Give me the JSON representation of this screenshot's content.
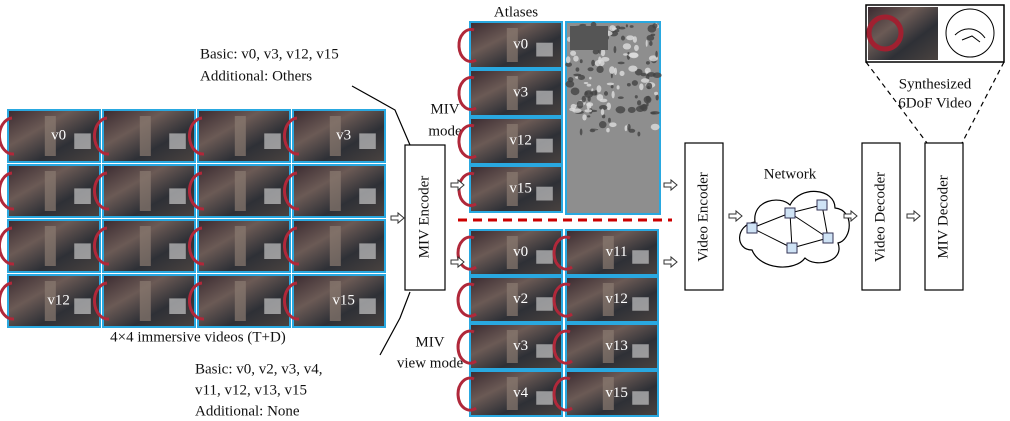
{
  "input": {
    "rows": [
      [
        "v0",
        null,
        null,
        "v3"
      ],
      [
        null,
        null,
        null,
        null
      ],
      [
        null,
        null,
        null,
        null
      ],
      [
        "v12",
        null,
        null,
        "v15"
      ]
    ],
    "caption": "4×4 immersive videos (T+D)"
  },
  "miv_mode": {
    "label_lines": [
      "MIV",
      "mode"
    ],
    "note_lines": [
      "Basic: v0, v3, v12, v15",
      "Additional: Others"
    ],
    "atlas_views": [
      "v0",
      "v3",
      "v12",
      "v15"
    ]
  },
  "miv_view_mode": {
    "label_lines": [
      "MIV",
      "view mode"
    ],
    "note_lines": [
      "Basic: v0, v2, v3, v4,",
      "v11, v12, v13, v15",
      "Additional: None"
    ],
    "atlas_views": [
      [
        "v0",
        "v2",
        "v3",
        "v4"
      ],
      [
        "v11",
        "v12",
        "v13",
        "v15"
      ]
    ]
  },
  "atlases_title": "Atlases",
  "blocks": {
    "miv_encoder": "MIV Encoder",
    "video_encoder": "Video Encoder",
    "video_decoder": "Video Decoder",
    "miv_decoder": "MIV Decoder"
  },
  "network": "Network",
  "output_lines": [
    "Synthesized",
    "6DoF Video"
  ]
}
